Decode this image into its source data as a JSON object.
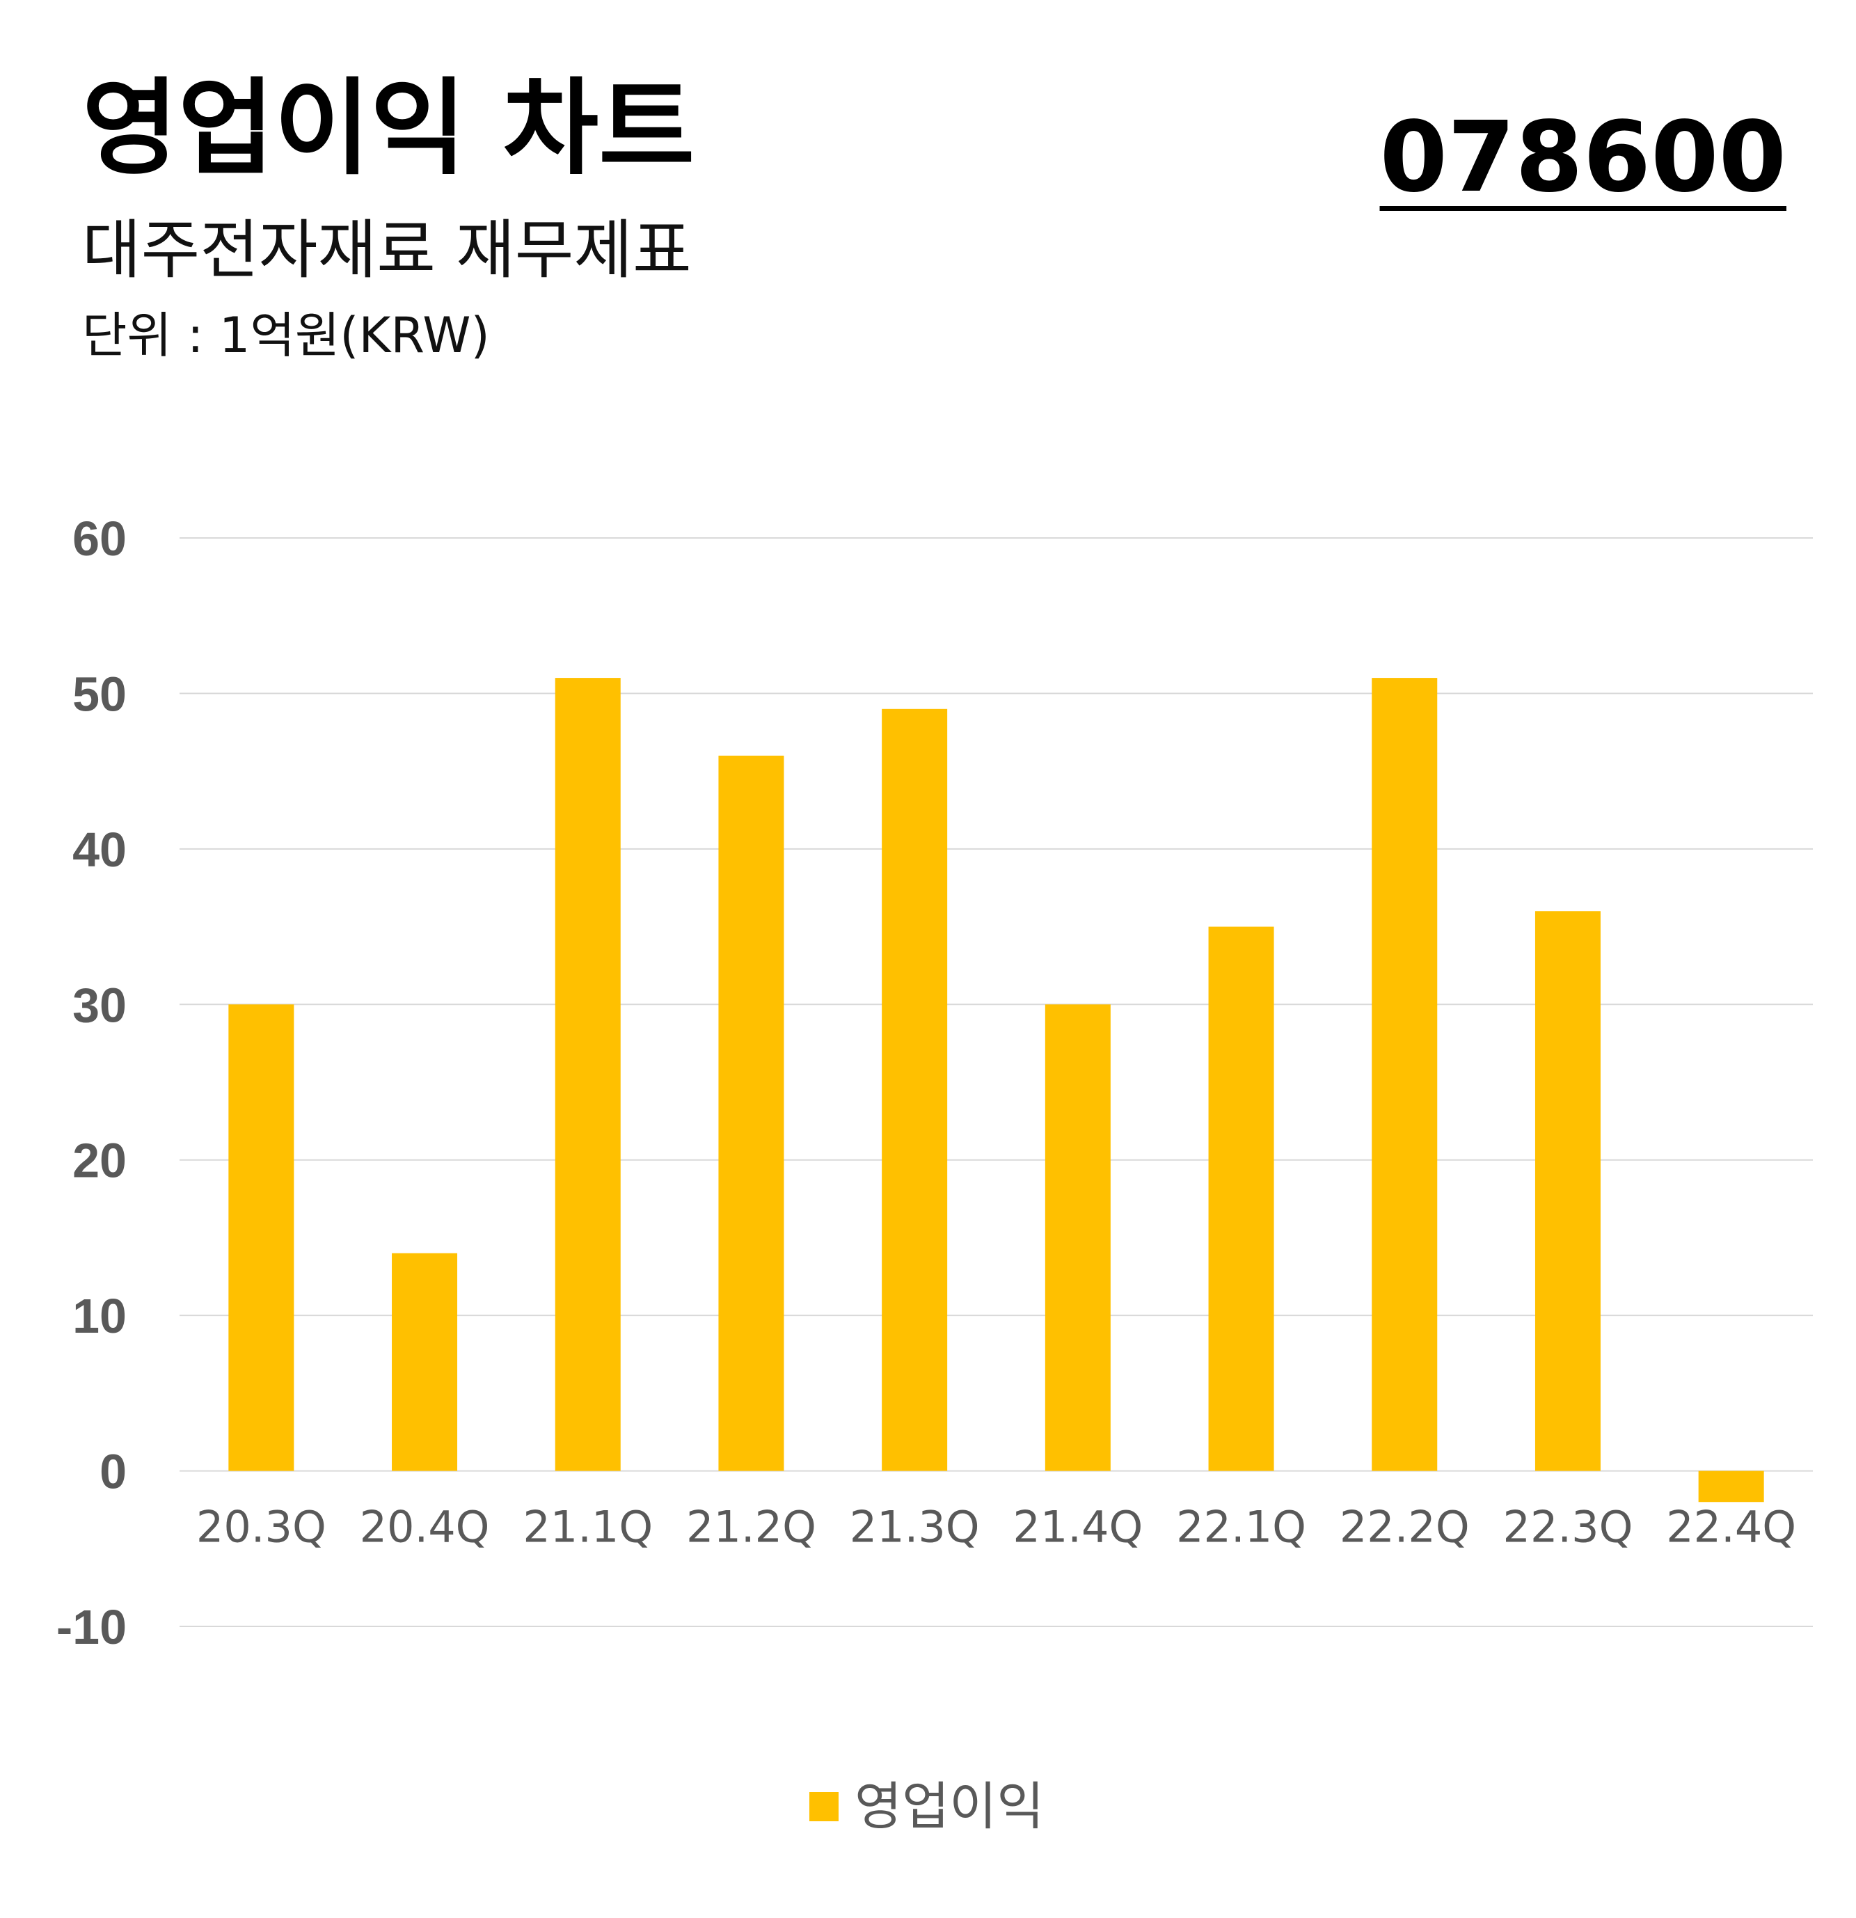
{
  "header": {
    "title": "영업이익 차트",
    "subtitle": "대주전자재료 재무제표",
    "unit": "단위 : 1억원(KRW)",
    "code": "078600"
  },
  "colors": {
    "bar": "#FFC000",
    "grid": "#D9D9D9",
    "tick_text": "#595959"
  },
  "chart_data": {
    "type": "bar",
    "categories": [
      "20.3Q",
      "20.4Q",
      "21.1Q",
      "21.2Q",
      "21.3Q",
      "21.4Q",
      "22.1Q",
      "22.2Q",
      "22.3Q",
      "22.4Q"
    ],
    "series": [
      {
        "name": "영업이익",
        "values": [
          30,
          14,
          51,
          46,
          49,
          30,
          35,
          51,
          36,
          -2
        ]
      }
    ],
    "ylim": [
      -10,
      60
    ],
    "yticks": [
      60,
      50,
      40,
      30,
      20,
      10,
      0,
      -10
    ],
    "grid": true,
    "legend": "bottom"
  }
}
